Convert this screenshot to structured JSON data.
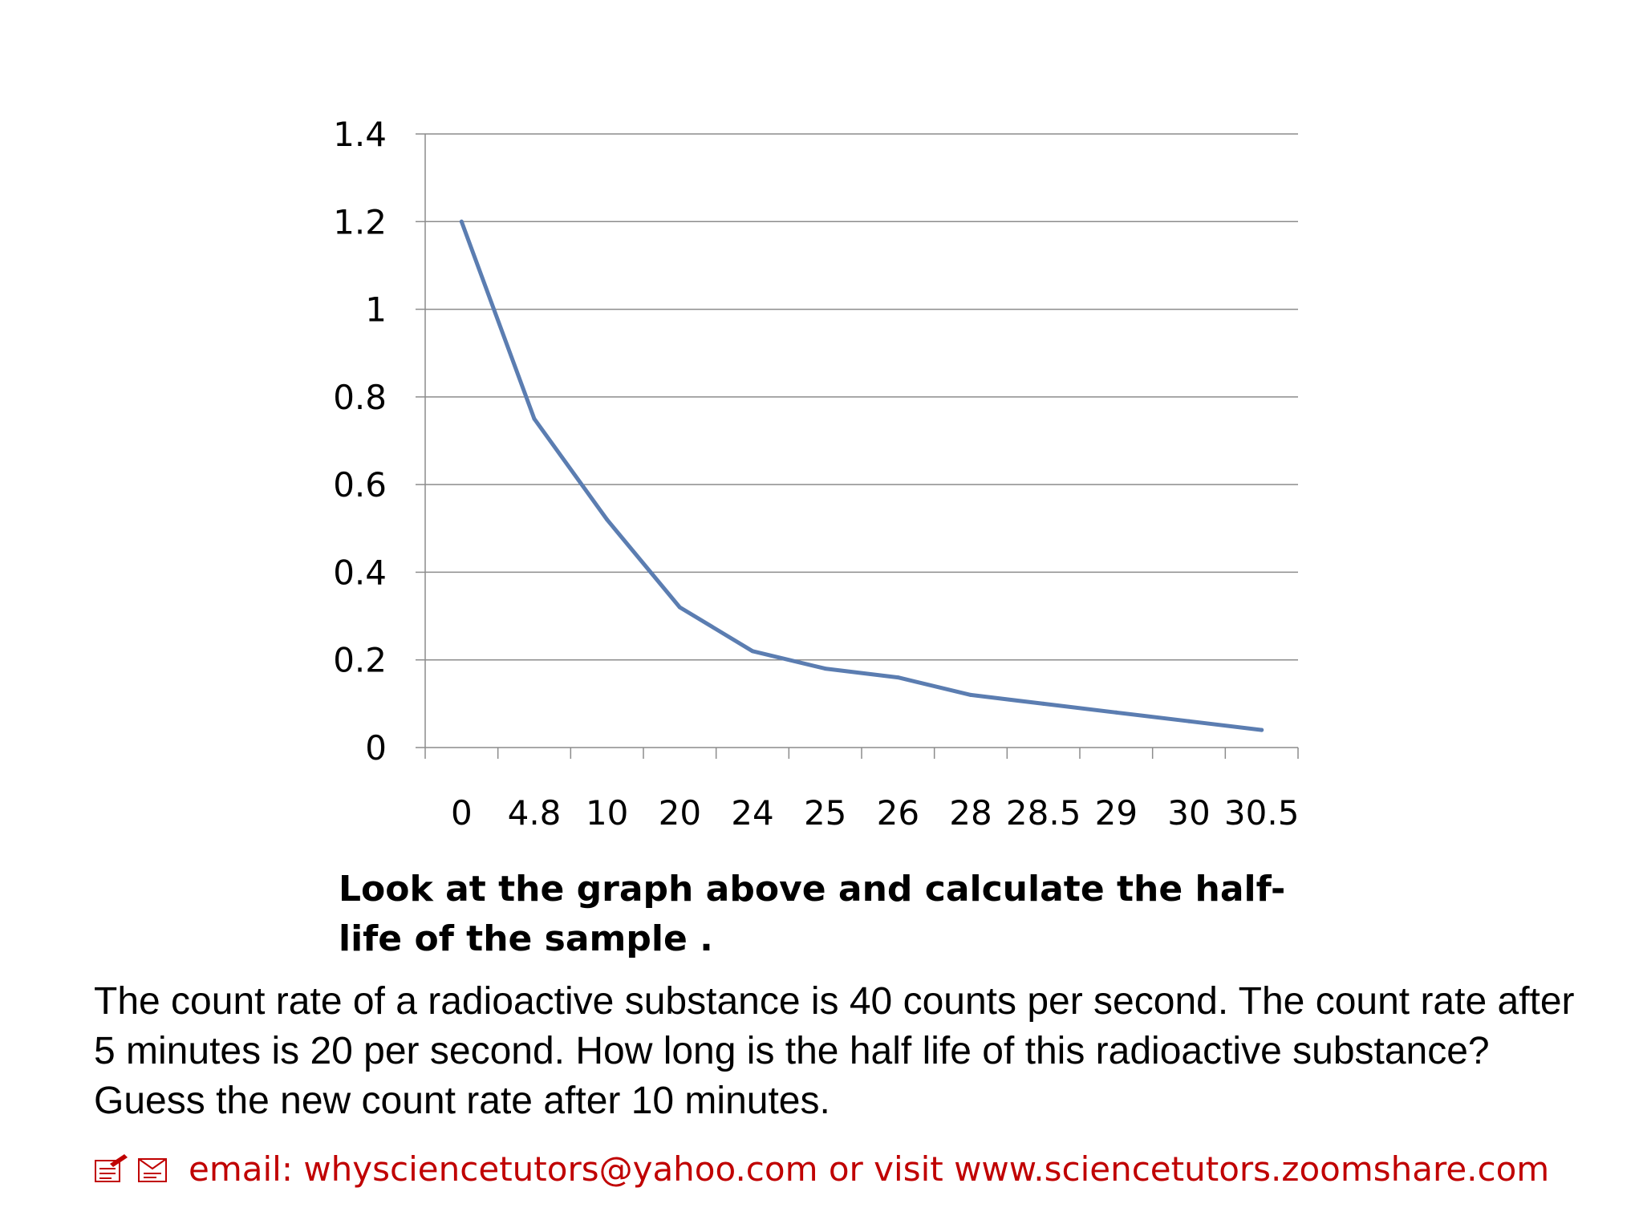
{
  "chart_data": {
    "type": "line",
    "categories": [
      "0",
      "4.8",
      "10",
      "20",
      "24",
      "25",
      "26",
      "28",
      "28.5",
      "29",
      "30",
      "30.5"
    ],
    "series": [
      {
        "values": [
          1.2,
          0.75,
          0.52,
          0.32,
          0.22,
          0.18,
          0.16,
          0.12,
          0.1,
          0.08,
          0.06,
          0.04
        ]
      }
    ],
    "yticks": [
      "0",
      "0.2",
      "0.4",
      "0.6",
      "0.8",
      "1",
      "1.2",
      "1.4"
    ],
    "ylim": [
      0,
      1.4
    ],
    "grid": true,
    "line_color": "#5B7DB1"
  },
  "question_bold": "Look at the graph above and calculate the half-life of the sample .",
  "question_text": "The count rate of a radioactive substance is 40 counts per second. The count rate after 5 minutes is 20 per second. How long is the half life of this radioactive substance? Guess the new count rate after 10 minutes.",
  "footer": {
    "contact": "email: whysciencetutors@yahoo.com or visit www.sciencetutors.zoomshare.com",
    "color": "#C00000",
    "icons": [
      "pen-note-icon",
      "envelope-icon"
    ]
  }
}
